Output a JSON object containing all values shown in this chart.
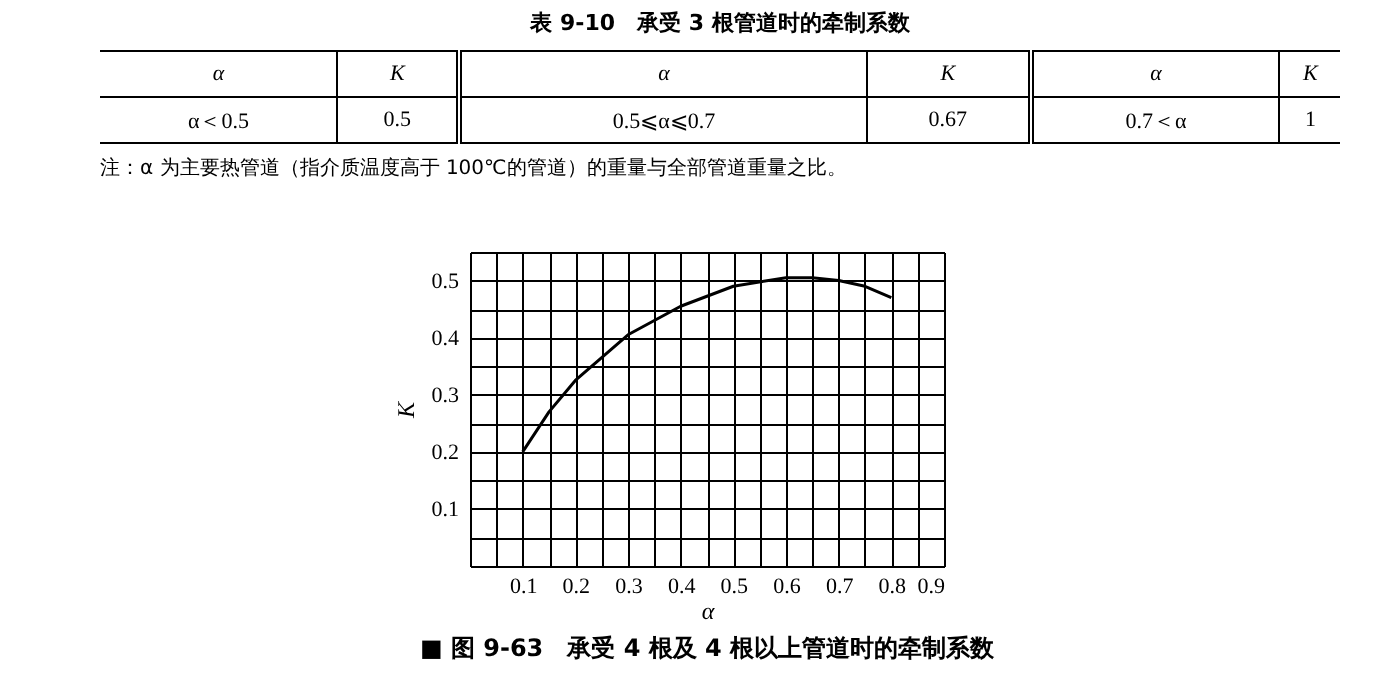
{
  "chart_data": [
    {
      "type": "other",
      "title": "表 9-10　承受 3 根管道时的牵制系数",
      "categories": [
        "α",
        "K",
        "α",
        "K",
        "α",
        "K"
      ],
      "annotations": [
        "α＜0.5",
        "0.5",
        "0.5⩽α⩽0.7",
        "0.67",
        "0.7＜α",
        "1",
        "注：α 为主要热管道（指介质温度高于 100℃的管道）的重量与全部管道重量之比。"
      ]
    },
    {
      "type": "line",
      "title": "■ 图 9-63　承受 4 根及 4 根以上管道时的牵制系数",
      "xlabel": "α",
      "ylabel": "K",
      "grid": true,
      "line_style": "solid",
      "marker": "none",
      "x": [
        0.1,
        0.15,
        0.2,
        0.3,
        0.4,
        0.5,
        0.6,
        0.65,
        0.7,
        0.75,
        0.8
      ],
      "series": [
        {
          "color": "#000000",
          "values": [
            0.2,
            0.27,
            0.325,
            0.405,
            0.455,
            0.49,
            0.505,
            0.505,
            0.5,
            0.49,
            0.47
          ]
        }
      ],
      "xlim": [
        0,
        0.9
      ],
      "ylim": [
        0,
        0.55
      ],
      "xticks": [
        {
          "value": 0.05,
          "label": null
        },
        0.1,
        {
          "value": 0.15,
          "label": null
        },
        0.2,
        {
          "value": 0.25,
          "label": null
        },
        0.3,
        {
          "value": 0.35,
          "label": null
        },
        0.4,
        {
          "value": 0.45,
          "label": null
        },
        0.5,
        {
          "value": 0.55,
          "label": null
        },
        0.6,
        {
          "value": 0.65,
          "label": null
        },
        0.7,
        {
          "value": 0.75,
          "label": null
        },
        0.8,
        {
          "value": 0.85,
          "label": null
        },
        0.9
      ],
      "yticks": [
        {
          "value": 0.05,
          "label": null
        },
        0.1,
        {
          "value": 0.15,
          "label": null
        },
        0.2,
        {
          "value": 0.25,
          "label": null
        },
        0.3,
        {
          "value": 0.35,
          "label": null
        },
        0.4,
        {
          "value": 0.45,
          "label": null
        },
        0.5,
        {
          "value": 0.55,
          "label": null
        }
      ]
    }
  ]
}
